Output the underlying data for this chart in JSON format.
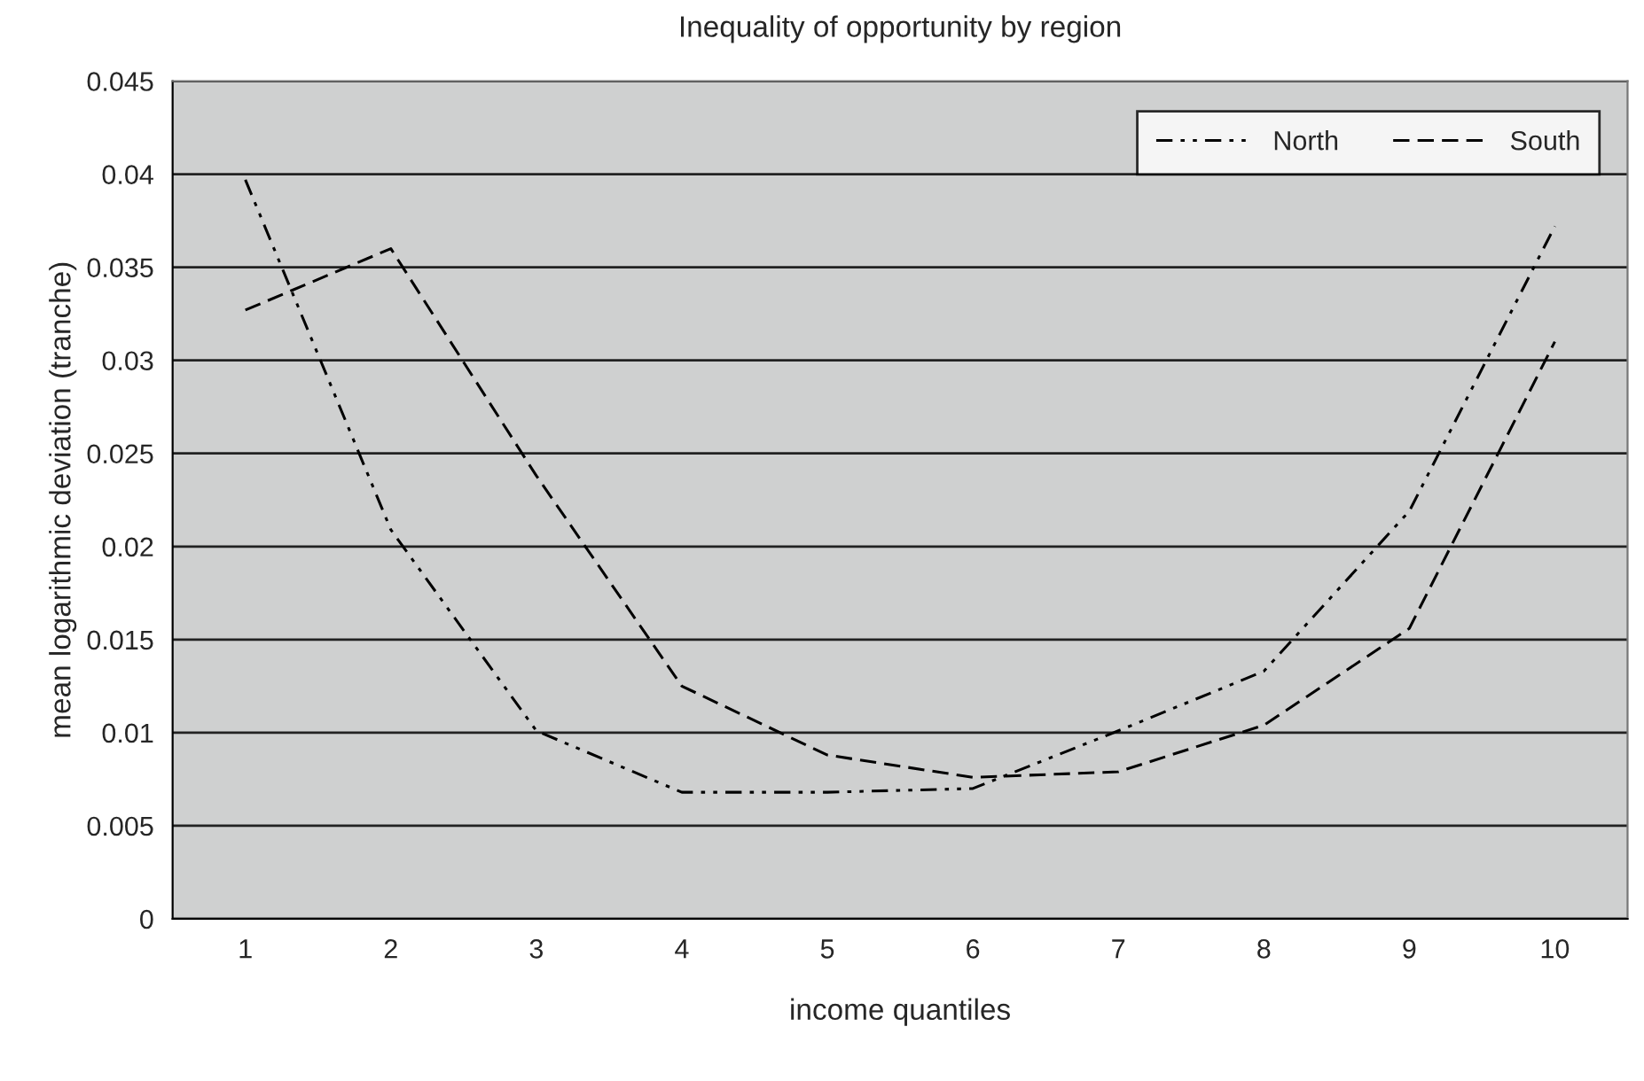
{
  "chart_data": {
    "type": "line",
    "title": "Inequality of opportunity by region",
    "xlabel": "income quantiles",
    "ylabel": "mean logarithmic deviation (tranche)",
    "categories": [
      "1",
      "2",
      "3",
      "4",
      "5",
      "6",
      "7",
      "8",
      "9",
      "10"
    ],
    "series": [
      {
        "name": "North",
        "color": "#000000",
        "line_style": "dashdot",
        "values": [
          0.0397,
          0.0209,
          0.0101,
          0.0068,
          0.0068,
          0.007,
          0.0101,
          0.0133,
          0.0219,
          0.0372
        ]
      },
      {
        "name": "South",
        "color": "#000000",
        "line_style": "dashed",
        "values": [
          0.0327,
          0.036,
          0.0238,
          0.0125,
          0.0088,
          0.0076,
          0.0079,
          0.0104,
          0.0156,
          0.031
        ]
      }
    ],
    "ylim": [
      0,
      0.045
    ],
    "yticks": [
      0,
      0.005,
      0.01,
      0.015,
      0.02,
      0.025,
      0.03,
      0.035,
      0.04,
      0.045
    ],
    "grid": "y",
    "legend": "top right",
    "marker": "none"
  }
}
